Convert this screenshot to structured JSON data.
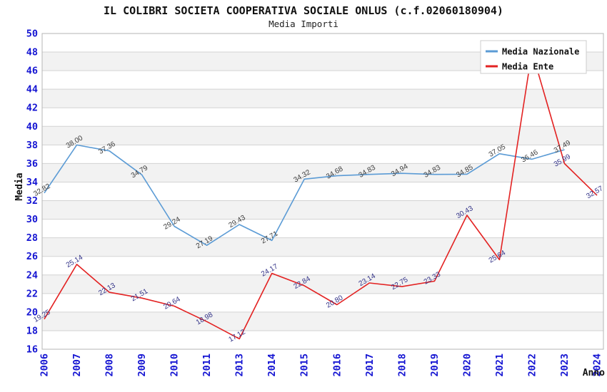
{
  "title": "IL COLIBRI SOCIETA COOPERATIVA SOCIALE ONLUS (c.f.02060180904)",
  "subtitle": "Media Importi",
  "legend": {
    "items": [
      {
        "label": "Media Nazionale",
        "swatch_color": "#5b9bd5"
      },
      {
        "label": "Media Ente",
        "swatch_color": "#e32222"
      }
    ]
  },
  "colors": {
    "background": "#ffffff",
    "plot_border": "#b5b5b5",
    "gridline": "#d3d3d3",
    "interlaced_band": "#f2f2f2",
    "axis_tick_label": "#1414d2",
    "axis_title": "#111111",
    "national_line": "#5b9bd5",
    "entity_line": "#e32222",
    "national_data_label": "#3c3c3c",
    "entity_data_label": "#333388",
    "legend_border": "#cccccc",
    "legend_background": "#ffffff"
  },
  "chart_data": {
    "type": "line",
    "title": "IL COLIBRI SOCIETA COOPERATIVA SOCIALE ONLUS (c.f.02060180904)",
    "subtitle": "Media Importi",
    "xlabel": "Anno",
    "ylabel": "Media",
    "ylim": [
      16,
      50
    ],
    "ytick_step": 2,
    "grid": "horizontal",
    "interlaced_bands": true,
    "legend_position": "top-right",
    "categories": [
      "2006",
      "2007",
      "2008",
      "2009",
      "2010",
      "2011",
      "2013",
      "2014",
      "2015",
      "2016",
      "2017",
      "2018",
      "2019",
      "2020",
      "2021",
      "2022",
      "2023",
      "2024"
    ],
    "series": [
      {
        "name": "Media Nazionale",
        "color": "#5b9bd5",
        "label_color": "#3c3c3c",
        "values": [
          32.82,
          38.0,
          37.36,
          34.79,
          29.24,
          27.19,
          29.43,
          27.71,
          34.32,
          34.68,
          34.83,
          34.94,
          34.83,
          34.85,
          37.05,
          36.46,
          37.49,
          null
        ]
      },
      {
        "name": "Media Ente",
        "color": "#e32222",
        "label_color": "#333388",
        "values": [
          19.25,
          25.14,
          22.13,
          21.51,
          20.64,
          18.98,
          17.12,
          24.17,
          22.84,
          20.8,
          23.14,
          22.75,
          23.33,
          30.43,
          25.64,
          48.08,
          35.99,
          32.57
        ]
      }
    ]
  }
}
